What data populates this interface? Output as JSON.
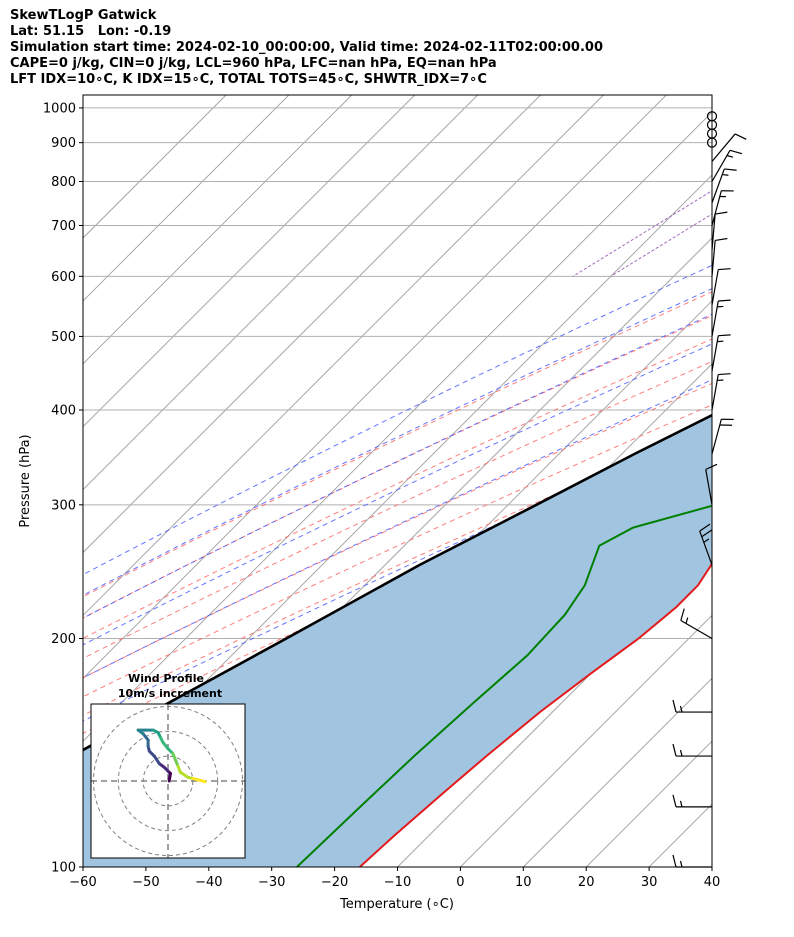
{
  "header": {
    "line1": "SkewTLogP Gatwick",
    "line2": "Lat: 51.15   Lon: -0.19",
    "line3": "Simulation start time: 2024-02-10_00:00:00, Valid time: 2024-02-11T02:00:00.00",
    "line4": "CAPE=0 j/kg, CIN=0 j/kg, LCL=960 hPa, LFC=nan hPa, EQ=nan hPa",
    "line5": "LFT IDX=10$^\\circ$C, K IDX=15$^\\circ$C, TOTAL TOTS=45$^\\circ$C, SHWTR_IDX=7$^\\circ$C"
  },
  "header_display": {
    "line5": "LFT IDX=10∘C, K IDX=15∘C, TOTAL TOTS=45∘C, SHWTR_IDX=7∘C"
  },
  "colors": {
    "temperature": "#e31a1c",
    "dewpoint": "#008000",
    "parcel": "#000000",
    "cape_fill": "#a1c4e0",
    "dry_adiabat": "#ff6666",
    "moist_adiabat": "#4b5cff",
    "isotherm": "#a6a6a6",
    "mixing_ratio": "#9b59b6"
  },
  "chart_data": [
    {
      "type": "line",
      "chart": "skew-t log-p",
      "xlabel": "Temperature ($^\\circ$C)",
      "ylabel": "Pressure (hPa)",
      "xlabel_display": "Temperature (∘C)",
      "xlim": [
        -60,
        40
      ],
      "ylim": [
        1040,
        100
      ],
      "y_scale": "log",
      "grid": true,
      "x_ticks": [
        -60,
        -50,
        -40,
        -30,
        -20,
        -10,
        0,
        10,
        20,
        30,
        40
      ],
      "y_ticks": [
        1000,
        900,
        800,
        700,
        600,
        500,
        400,
        300,
        200,
        100
      ],
      "series": [
        {
          "name": "",
          "kind": "temperature",
          "pressure": [
            975,
            960,
            950,
            925,
            900,
            850,
            800,
            750,
            700,
            650,
            600,
            550,
            500,
            470,
            450,
            420,
            400,
            380,
            350,
            330,
            310,
            290,
            270,
            255,
            235,
            220,
            200,
            180,
            160,
            140,
            125,
            110,
            100
          ],
          "temperature": [
            7,
            9,
            9.5,
            8,
            7.5,
            6.5,
            5,
            4,
            3,
            1.5,
            0,
            -1.5,
            -3,
            -3.5,
            -4.5,
            -6.5,
            -8.5,
            -10.5,
            -13.5,
            -14.5,
            -14,
            -12.5,
            -11,
            -8.5,
            -7,
            -7,
            -8,
            -10,
            -12,
            -13.5,
            -14.5,
            -15.5,
            -16
          ]
        },
        {
          "name": "",
          "kind": "dewpoint",
          "pressure": [
            975,
            950,
            930,
            900,
            875,
            850,
            800,
            750,
            700,
            650,
            600,
            550,
            520,
            500,
            470,
            430,
            390,
            370,
            350,
            320,
            300,
            280,
            265,
            235,
            215,
            190,
            165,
            140,
            120,
            100
          ],
          "temperature": [
            5.5,
            5,
            6.5,
            7,
            5,
            3.5,
            3,
            0.5,
            -4,
            -8,
            -15,
            -20,
            -18.5,
            -7,
            -5.5,
            -9,
            -11,
            -12.5,
            -13.5,
            -16,
            -17,
            -26.5,
            -29,
            -25,
            -23.5,
            -23,
            -24,
            -25,
            -25.5,
            -26
          ]
        },
        {
          "name": "",
          "kind": "parcel",
          "pressure": [
            975,
            960,
            925,
            900,
            850,
            800,
            750,
            700,
            650,
            600,
            550,
            500,
            450,
            400,
            350,
            300,
            250,
            200,
            150,
            125,
            100
          ],
          "temperature": [
            6.5,
            6,
            4.5,
            3.5,
            1.5,
            -0.5,
            -2.5,
            -4.5,
            -8,
            -11.5,
            -15.5,
            -20,
            -25.5,
            -31,
            -38,
            -45.5,
            -54.5,
            -64,
            -76.5,
            -84,
            -92
          ]
        }
      ],
      "isopleths": {
        "dry_adiabats_theta_K": [
          260,
          270,
          280,
          290,
          300,
          310,
          320,
          330,
          340,
          350,
          360,
          370
        ],
        "moist_adiabats_surface_C": [
          -22,
          -14,
          -6,
          2,
          10,
          18,
          26,
          34
        ],
        "mixing_ratio_surface_C": [
          -58,
          -52
        ]
      }
    },
    {
      "type": "scatter",
      "chart": "hodograph",
      "title": "Wind Profile\n10m/s increment",
      "title_display_lines": [
        "Wind Profile",
        "10m/s increment"
      ],
      "rings_ms": [
        10,
        20,
        30
      ],
      "xlim": [
        -31,
        31
      ],
      "ylim": [
        -31,
        31
      ],
      "points_u_v_ms": [
        [
          0.5,
          0
        ],
        [
          0.7,
          1.5
        ],
        [
          1,
          3
        ],
        [
          0,
          4
        ],
        [
          -1.5,
          5.5
        ],
        [
          -3.5,
          7
        ],
        [
          -5.5,
          10
        ],
        [
          -7.5,
          12
        ],
        [
          -8,
          14
        ],
        [
          -8,
          16.5
        ],
        [
          -10,
          19
        ],
        [
          -12,
          20.5
        ],
        [
          -9.5,
          20.5
        ],
        [
          -6,
          20.5
        ],
        [
          -4,
          19.5
        ],
        [
          -3,
          17.5
        ],
        [
          -2,
          15.5
        ],
        [
          0,
          13
        ],
        [
          2,
          11
        ],
        [
          3,
          8.5
        ],
        [
          4,
          6
        ],
        [
          5,
          3.5
        ],
        [
          8,
          1.5
        ],
        [
          10,
          1
        ],
        [
          12,
          0.5
        ],
        [
          15,
          -0.3
        ]
      ]
    }
  ],
  "wind_barbs": [
    {
      "p": 100,
      "speed_kt": 15,
      "dir_deg": 270
    },
    {
      "p": 120,
      "speed_kt": 15,
      "dir_deg": 270
    },
    {
      "p": 140,
      "speed_kt": 15,
      "dir_deg": 270
    },
    {
      "p": 160,
      "speed_kt": 15,
      "dir_deg": 270
    },
    {
      "p": 200,
      "speed_kt": 15,
      "dir_deg": 300
    },
    {
      "p": 250,
      "speed_kt": 25,
      "dir_deg": 340
    },
    {
      "p": 300,
      "speed_kt": 10,
      "dir_deg": 350
    },
    {
      "p": 350,
      "speed_kt": 20,
      "dir_deg": 15
    },
    {
      "p": 400,
      "speed_kt": 15,
      "dir_deg": 10
    },
    {
      "p": 450,
      "speed_kt": 15,
      "dir_deg": 10
    },
    {
      "p": 500,
      "speed_kt": 15,
      "dir_deg": 10
    },
    {
      "p": 550,
      "speed_kt": 10,
      "dir_deg": 10
    },
    {
      "p": 600,
      "speed_kt": 10,
      "dir_deg": 5
    },
    {
      "p": 650,
      "speed_kt": 10,
      "dir_deg": 5
    },
    {
      "p": 700,
      "speed_kt": 15,
      "dir_deg": 15
    },
    {
      "p": 750,
      "speed_kt": 15,
      "dir_deg": 20
    },
    {
      "p": 800,
      "speed_kt": 15,
      "dir_deg": 30
    },
    {
      "p": 850,
      "speed_kt": 10,
      "dir_deg": 40
    },
    {
      "p": 900,
      "speed_kt": 0,
      "dir_deg": 0
    },
    {
      "p": 925,
      "speed_kt": 0,
      "dir_deg": 0
    },
    {
      "p": 950,
      "speed_kt": 0,
      "dir_deg": 0
    },
    {
      "p": 975,
      "speed_kt": 0,
      "dir_deg": 0
    }
  ]
}
